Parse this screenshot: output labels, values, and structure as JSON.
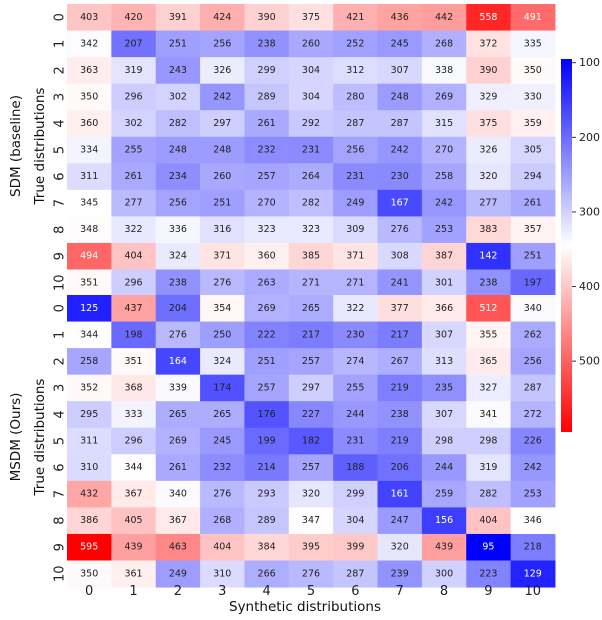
{
  "chart_data": {
    "type": "heatmap",
    "xlabel": "Synthetic distributions",
    "ylabel": "True distributions",
    "x_categories": [
      "0",
      "1",
      "2",
      "3",
      "4",
      "5",
      "6",
      "7",
      "8",
      "9",
      "10"
    ],
    "y_categories": [
      "0",
      "1",
      "2",
      "3",
      "4",
      "5",
      "6",
      "7",
      "8",
      "9",
      "10"
    ],
    "colormap": "bwr_r",
    "colors": {
      "low": "#0000ff",
      "mid": "#ffffff",
      "high": "#ff0000"
    },
    "vmin": 95,
    "vmax": 595,
    "colorbar_ticks": [
      100,
      200,
      300,
      400,
      500
    ],
    "panels": [
      {
        "name": "SDM (baseline)",
        "values": [
          [
            403,
            420,
            391,
            424,
            390,
            375,
            421,
            436,
            442,
            558,
            491
          ],
          [
            342,
            207,
            251,
            256,
            238,
            260,
            252,
            245,
            268,
            372,
            335
          ],
          [
            363,
            319,
            243,
            326,
            299,
            304,
            312,
            307,
            338,
            390,
            350
          ],
          [
            350,
            296,
            302,
            242,
            289,
            304,
            280,
            248,
            269,
            329,
            330
          ],
          [
            360,
            302,
            282,
            297,
            261,
            292,
            287,
            287,
            315,
            375,
            359
          ],
          [
            334,
            255,
            248,
            248,
            232,
            231,
            256,
            242,
            270,
            326,
            305
          ],
          [
            311,
            261,
            234,
            260,
            257,
            264,
            231,
            230,
            258,
            320,
            294
          ],
          [
            345,
            277,
            256,
            251,
            270,
            282,
            249,
            167,
            242,
            277,
            261
          ],
          [
            348,
            322,
            336,
            316,
            323,
            323,
            309,
            276,
            253,
            383,
            357
          ],
          [
            494,
            404,
            324,
            371,
            360,
            385,
            371,
            308,
            387,
            142,
            251
          ],
          [
            351,
            296,
            238,
            276,
            263,
            271,
            271,
            241,
            301,
            238,
            197
          ]
        ]
      },
      {
        "name": "MSDM (Ours)",
        "values": [
          [
            125,
            437,
            204,
            354,
            269,
            265,
            322,
            377,
            366,
            512,
            340
          ],
          [
            344,
            198,
            276,
            250,
            222,
            217,
            230,
            217,
            307,
            355,
            262
          ],
          [
            258,
            351,
            164,
            324,
            251,
            257,
            274,
            267,
            313,
            365,
            256
          ],
          [
            352,
            368,
            339,
            174,
            257,
            297,
            255,
            219,
            235,
            327,
            287
          ],
          [
            295,
            333,
            265,
            265,
            176,
            227,
            244,
            238,
            307,
            341,
            272
          ],
          [
            311,
            296,
            269,
            245,
            199,
            182,
            231,
            219,
            298,
            298,
            226
          ],
          [
            310,
            344,
            261,
            232,
            214,
            257,
            188,
            206,
            244,
            319,
            242
          ],
          [
            432,
            367,
            340,
            276,
            293,
            320,
            299,
            161,
            259,
            282,
            253
          ],
          [
            386,
            405,
            367,
            268,
            289,
            347,
            304,
            247,
            156,
            404,
            346
          ],
          [
            595,
            439,
            463,
            404,
            384,
            395,
            399,
            320,
            439,
            95,
            218
          ],
          [
            350,
            361,
            249,
            310,
            266,
            276,
            287,
            239,
            300,
            223,
            129
          ]
        ]
      }
    ]
  }
}
